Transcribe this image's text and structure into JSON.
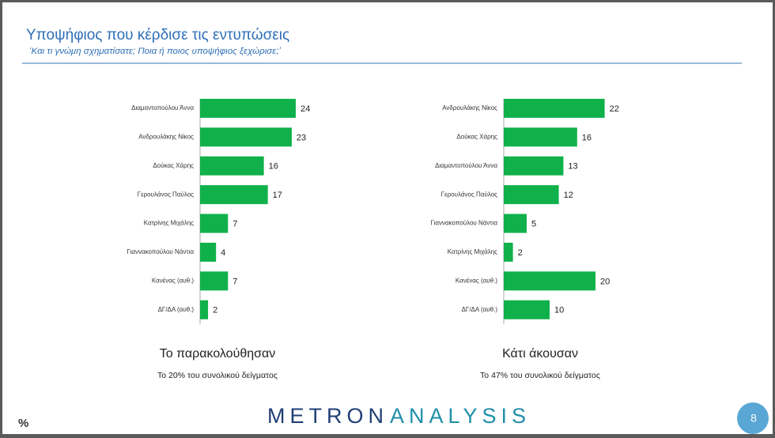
{
  "header": {
    "title": "Υποψήφιος που κέρδισε τις εντυπώσεις",
    "subtitle": "‘Και τι γνώμη σχηματίσατε; Ποια ή ποιος υποψήφιος ξεχώρισε;’"
  },
  "chart_data": [
    {
      "type": "bar",
      "orientation": "horizontal",
      "title": "Το παρακολούθησαν",
      "subtitle": "Το 20% του συνολικού δείγματος",
      "color": "#10b14b",
      "categories": [
        "Διαμαντοπούλου Άννα",
        "Ανδρουλάκης Νίκος",
        "Δούκας Χάρης",
        "Γερουλάνος Παύλος",
        "Κατρίνης Μιχάλης",
        "Γιαννακοπούλου Νάντια",
        "Κανένας (αυθ.)",
        "ΔΓ/ΔΑ (αυθ.)"
      ],
      "values": [
        24,
        23,
        16,
        17,
        7,
        4,
        7,
        2
      ]
    },
    {
      "type": "bar",
      "orientation": "horizontal",
      "title": "Κάτι άκουσαν",
      "subtitle": "Το 47% του συνολικού δείγματος",
      "color": "#10b14b",
      "categories": [
        "Ανδρουλάκης Νίκος",
        "Δούκας Χάρης",
        "Διαμαντοπούλου Άννα",
        "Γερουλάνος Παύλος",
        "Γιαννακοπούλου Νάντια",
        "Κατρίνης Μιχάλης",
        "Κανένας (αυθ.)",
        "ΔΓ/ΔΑ (αυθ.)"
      ],
      "values": [
        22,
        16,
        13,
        12,
        5,
        2,
        20,
        10
      ]
    }
  ],
  "footer": {
    "unit": "%",
    "logo_left": "METRON",
    "logo_right": "ANALYSIS",
    "page": 8
  }
}
